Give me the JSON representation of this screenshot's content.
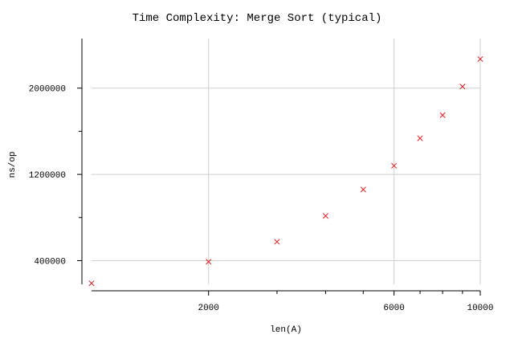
{
  "chart_data": {
    "type": "scatter",
    "title": "Time Complexity: Merge Sort (typical)",
    "xlabel": "len(A)",
    "ylabel": "ns/op",
    "x_scale": "log",
    "xlim": [
      1000,
      10000
    ],
    "ylim": [
      180000,
      2460000
    ],
    "x_ticks": [
      {
        "value": 2000,
        "label": "2000"
      },
      {
        "value": 6000,
        "label": "6000"
      },
      {
        "value": 10000,
        "label": "10000"
      }
    ],
    "x_minor_ticks": [
      3000,
      4000,
      5000,
      7000,
      8000,
      9000
    ],
    "y_ticks": [
      {
        "value": 400000,
        "label": "400000"
      },
      {
        "value": 1200000,
        "label": "1200000"
      },
      {
        "value": 2000000,
        "label": "2000000"
      }
    ],
    "y_minor_ticks": [
      800000,
      1600000
    ],
    "grid": true,
    "marker": "x",
    "series": [
      {
        "color": "#e41a1c",
        "x": [
          1000,
          2000,
          3000,
          4000,
          5000,
          6000,
          7000,
          8000,
          9000,
          10000
        ],
        "y": [
          190000,
          390000,
          575000,
          815000,
          1060000,
          1280000,
          1535000,
          1750000,
          2015000,
          2270000
        ]
      }
    ]
  }
}
